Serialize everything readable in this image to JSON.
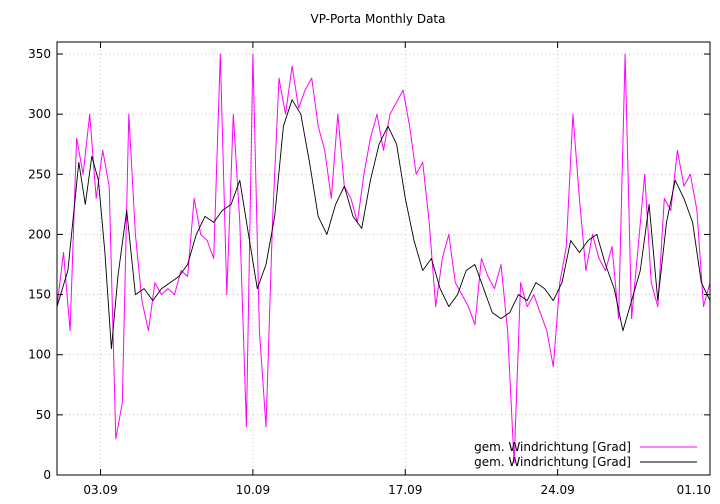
{
  "chart_data": {
    "type": "line",
    "title": "VP-Porta Monthly Data",
    "xlabel": "",
    "ylabel": "",
    "x_ticks": [
      "03.09",
      "10.09",
      "17.09",
      "24.09",
      "01.10"
    ],
    "x_tick_days": [
      3,
      10,
      17,
      24,
      31
    ],
    "xlim": [
      1,
      31
    ],
    "ylim": [
      0,
      360
    ],
    "y_ticks": [
      0,
      50,
      100,
      150,
      200,
      250,
      300,
      350
    ],
    "grid": true,
    "legend_position": "bottom-right",
    "series": [
      {
        "name": "gem. Windrichtung [Grad]",
        "color": "#ff00ff",
        "style": "raw",
        "x": [
          1.0,
          1.3,
          1.6,
          1.9,
          2.2,
          2.5,
          2.8,
          3.1,
          3.4,
          3.7,
          4.0,
          4.3,
          4.6,
          4.9,
          5.2,
          5.5,
          5.8,
          6.1,
          6.4,
          6.7,
          7.0,
          7.3,
          7.6,
          7.9,
          8.2,
          8.5,
          8.8,
          9.1,
          9.4,
          9.7,
          10.0,
          10.3,
          10.6,
          10.9,
          11.2,
          11.5,
          11.8,
          12.1,
          12.4,
          12.7,
          13.0,
          13.3,
          13.6,
          13.9,
          14.2,
          14.5,
          14.8,
          15.1,
          15.4,
          15.7,
          16.0,
          16.3,
          16.6,
          16.9,
          17.2,
          17.5,
          17.8,
          18.1,
          18.4,
          18.7,
          19.0,
          19.3,
          19.6,
          19.9,
          20.2,
          20.5,
          20.8,
          21.1,
          21.4,
          21.7,
          22.0,
          22.3,
          22.6,
          22.9,
          23.2,
          23.5,
          23.8,
          24.1,
          24.4,
          24.7,
          25.0,
          25.3,
          25.6,
          25.9,
          26.2,
          26.5,
          26.8,
          27.1,
          27.4,
          27.7,
          28.0,
          28.3,
          28.6,
          28.9,
          29.2,
          29.5,
          29.8,
          30.1,
          30.4,
          30.7,
          31.0
        ],
        "values": [
          140,
          185,
          120,
          280,
          250,
          300,
          230,
          270,
          240,
          30,
          60,
          300,
          200,
          145,
          120,
          160,
          150,
          155,
          150,
          170,
          165,
          230,
          200,
          195,
          180,
          350,
          150,
          300,
          210,
          40,
          350,
          120,
          40,
          210,
          330,
          300,
          340,
          305,
          320,
          330,
          290,
          270,
          230,
          300,
          240,
          230,
          210,
          250,
          280,
          300,
          270,
          300,
          310,
          320,
          290,
          250,
          260,
          210,
          140,
          180,
          200,
          160,
          150,
          140,
          125,
          180,
          165,
          155,
          175,
          120,
          10,
          160,
          140,
          150,
          135,
          120,
          90,
          160,
          190,
          300,
          230,
          170,
          200,
          180,
          170,
          190,
          130,
          350,
          130,
          190,
          250,
          160,
          140,
          230,
          220,
          270,
          240,
          250,
          220,
          140,
          160
        ]
      },
      {
        "name": "gem. Windrichtung [Grad]",
        "color": "#000000",
        "style": "smoothed",
        "x": [
          1.0,
          1.5,
          2.0,
          2.3,
          2.6,
          2.9,
          3.2,
          3.5,
          3.8,
          4.2,
          4.6,
          5.0,
          5.4,
          5.8,
          6.2,
          6.6,
          7.0,
          7.4,
          7.8,
          8.2,
          8.6,
          9.0,
          9.4,
          9.8,
          10.2,
          10.6,
          11.0,
          11.4,
          11.8,
          12.2,
          12.6,
          13.0,
          13.4,
          13.8,
          14.2,
          14.6,
          15.0,
          15.4,
          15.8,
          16.2,
          16.6,
          17.0,
          17.4,
          17.8,
          18.2,
          18.6,
          19.0,
          19.4,
          19.8,
          20.2,
          20.6,
          21.0,
          21.4,
          21.8,
          22.2,
          22.6,
          23.0,
          23.4,
          23.8,
          24.2,
          24.6,
          25.0,
          25.4,
          25.8,
          26.2,
          26.6,
          27.0,
          27.4,
          27.8,
          28.2,
          28.6,
          29.0,
          29.4,
          29.8,
          30.2,
          30.6,
          31.0
        ],
        "values": [
          140,
          170,
          260,
          225,
          265,
          245,
          185,
          105,
          165,
          220,
          150,
          155,
          145,
          155,
          160,
          165,
          175,
          200,
          215,
          210,
          220,
          225,
          245,
          200,
          155,
          175,
          215,
          290,
          312,
          300,
          260,
          215,
          200,
          225,
          240,
          215,
          205,
          245,
          275,
          290,
          275,
          230,
          195,
          170,
          180,
          155,
          140,
          150,
          170,
          175,
          155,
          135,
          130,
          135,
          150,
          145,
          160,
          155,
          145,
          160,
          195,
          185,
          195,
          200,
          175,
          155,
          120,
          145,
          170,
          225,
          145,
          210,
          245,
          230,
          210,
          160,
          145
        ]
      }
    ]
  }
}
